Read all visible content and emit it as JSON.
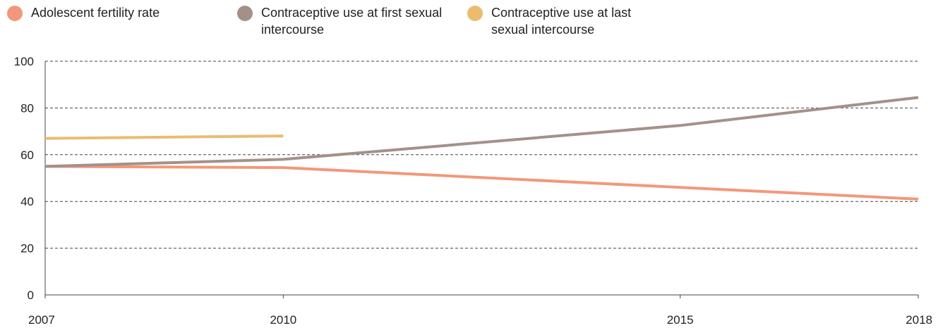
{
  "legend": [
    {
      "label": "Adolescent fertility rate",
      "color": "#F2987A"
    },
    {
      "label": "Contraceptive use at first sexual intercourse",
      "color": "#A39189"
    },
    {
      "label": "Contraceptive use at last sexual intercourse",
      "color": "#EBBC6E"
    }
  ],
  "chart_data": {
    "type": "line",
    "title": "",
    "xlabel": "",
    "ylabel": "",
    "xlim": [
      2007,
      2018
    ],
    "ylim": [
      0,
      100
    ],
    "x_ticks": [
      2007,
      2010,
      2015,
      2018
    ],
    "y_ticks": [
      0,
      20,
      40,
      60,
      80,
      100
    ],
    "grid": "horizontal dashed",
    "legend_position": "top",
    "series": [
      {
        "name": "Adolescent fertility rate",
        "color": "#F2987A",
        "points": [
          [
            2007,
            55
          ],
          [
            2010,
            54.5
          ],
          [
            2015,
            46
          ],
          [
            2018,
            41
          ]
        ]
      },
      {
        "name": "Contraceptive use at first sexual intercourse",
        "color": "#A39189",
        "points": [
          [
            2007,
            55
          ],
          [
            2010,
            58
          ],
          [
            2015,
            72.5
          ],
          [
            2018,
            84.5
          ]
        ]
      },
      {
        "name": "Contraceptive use at last sexual intercourse",
        "color": "#EBBC6E",
        "points": [
          [
            2007,
            67
          ],
          [
            2010,
            68
          ]
        ]
      }
    ]
  }
}
